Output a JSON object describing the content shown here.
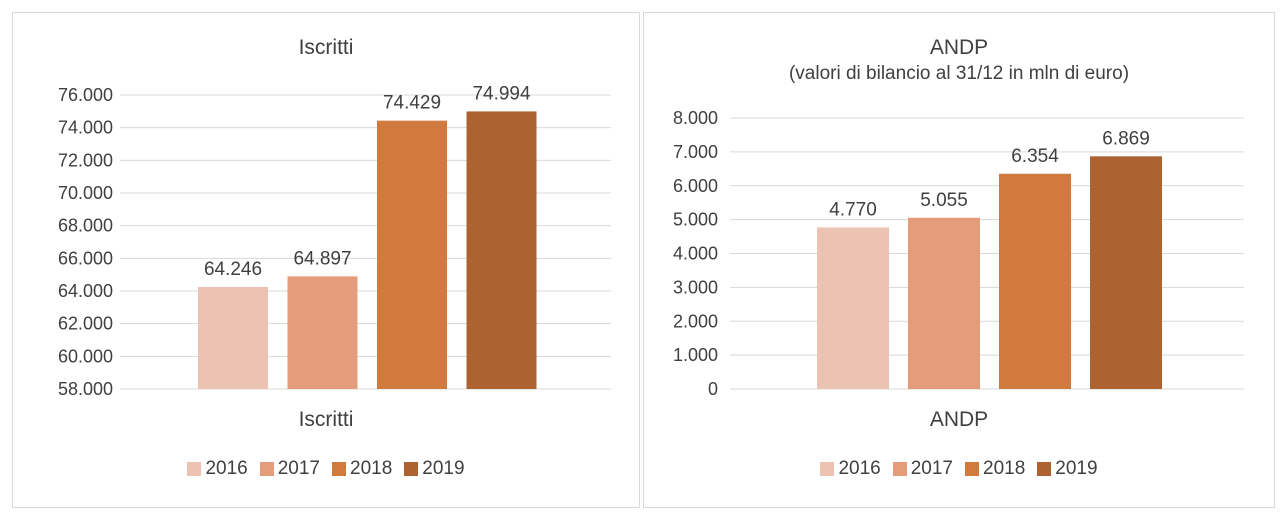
{
  "chart_data": [
    {
      "type": "bar",
      "title": "Iscritti",
      "subtitle": "",
      "xlabel": "Iscritti",
      "ylabel": "",
      "categories": [
        "Iscritti"
      ],
      "series": [
        {
          "name": "2016",
          "values": [
            64246
          ],
          "label": "64.246",
          "color": "#ecc3b2"
        },
        {
          "name": "2017",
          "values": [
            64897
          ],
          "label": "64.897",
          "color": "#e49c7a"
        },
        {
          "name": "2018",
          "values": [
            74429
          ],
          "label": "74.429",
          "color": "#d07a3e"
        },
        {
          "name": "2019",
          "values": [
            74994
          ],
          "label": "74.994",
          "color": "#ad6232"
        }
      ],
      "ylim": [
        58000,
        76000
      ],
      "yticks": [
        58000,
        60000,
        62000,
        64000,
        66000,
        68000,
        70000,
        72000,
        74000,
        76000
      ],
      "ytick_labels": [
        "58.000",
        "60.000",
        "62.000",
        "64.000",
        "66.000",
        "68.000",
        "70.000",
        "72.000",
        "74.000",
        "76.000"
      ],
      "grid": true,
      "legend": "bottom"
    },
    {
      "type": "bar",
      "title": "ANDP",
      "subtitle": "(valori di bilancio al 31/12 in mln di euro)",
      "xlabel": "ANDP",
      "ylabel": "",
      "categories": [
        "ANDP"
      ],
      "series": [
        {
          "name": "2016",
          "values": [
            4770
          ],
          "label": "4.770",
          "color": "#ecc3b2"
        },
        {
          "name": "2017",
          "values": [
            5055
          ],
          "label": "5.055",
          "color": "#e49c7a"
        },
        {
          "name": "2018",
          "values": [
            6354
          ],
          "label": "6.354",
          "color": "#d07a3e"
        },
        {
          "name": "2019",
          "values": [
            6869
          ],
          "label": "6.869",
          "color": "#ad6232"
        }
      ],
      "ylim": [
        0,
        8000
      ],
      "yticks": [
        0,
        1000,
        2000,
        3000,
        4000,
        5000,
        6000,
        7000,
        8000
      ],
      "ytick_labels": [
        "0",
        "1.000",
        "2.000",
        "3.000",
        "4.000",
        "5.000",
        "6.000",
        "7.000",
        "8.000"
      ],
      "grid": true,
      "legend": "bottom"
    }
  ]
}
